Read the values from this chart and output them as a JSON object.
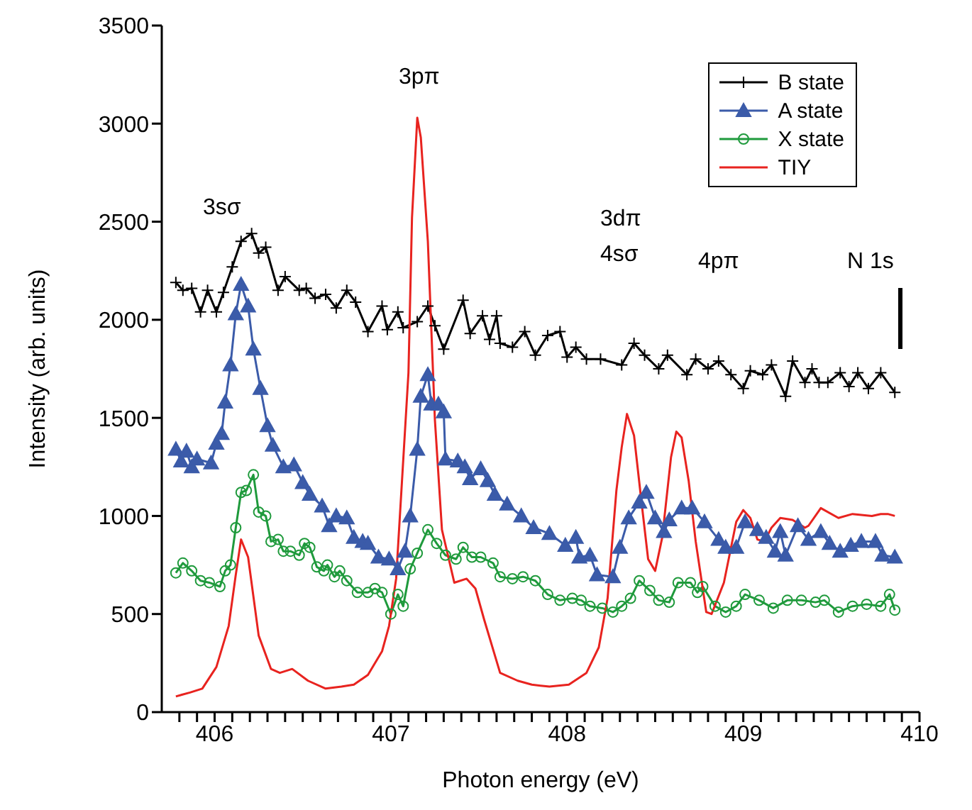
{
  "chart_data": {
    "type": "line",
    "xlabel": "Photon energy (eV)",
    "ylabel": "Intensity (arb. units)",
    "xlim": [
      405.7,
      410
    ],
    "xticks": [
      {
        "value": 405.8,
        "label": null
      },
      {
        "value": 405.9,
        "label": null
      },
      406,
      {
        "value": 406.1,
        "label": null
      },
      {
        "value": 406.2,
        "label": null
      },
      {
        "value": 406.3,
        "label": null
      },
      {
        "value": 406.4,
        "label": null
      },
      {
        "value": 406.5,
        "label": null
      },
      {
        "value": 406.6,
        "label": null
      },
      {
        "value": 406.7,
        "label": null
      },
      {
        "value": 406.8,
        "label": null
      },
      {
        "value": 406.9,
        "label": null
      },
      407,
      {
        "value": 407.1,
        "label": null
      },
      {
        "value": 407.2,
        "label": null
      },
      {
        "value": 407.3,
        "label": null
      },
      {
        "value": 407.4,
        "label": null
      },
      {
        "value": 407.5,
        "label": null
      },
      {
        "value": 407.6,
        "label": null
      },
      {
        "value": 407.7,
        "label": null
      },
      {
        "value": 407.8,
        "label": null
      },
      {
        "value": 407.9,
        "label": null
      },
      408,
      {
        "value": 408.1,
        "label": null
      },
      {
        "value": 408.2,
        "label": null
      },
      {
        "value": 408.3,
        "label": null
      },
      {
        "value": 408.4,
        "label": null
      },
      {
        "value": 408.5,
        "label": null
      },
      {
        "value": 408.6,
        "label": null
      },
      {
        "value": 408.7,
        "label": null
      },
      {
        "value": 408.8,
        "label": null
      },
      {
        "value": 408.9,
        "label": null
      },
      409,
      {
        "value": 409.1,
        "label": null
      },
      {
        "value": 409.2,
        "label": null
      },
      {
        "value": 409.3,
        "label": null
      },
      {
        "value": 409.4,
        "label": null
      },
      {
        "value": 409.5,
        "label": null
      },
      {
        "value": 409.6,
        "label": null
      },
      {
        "value": 409.7,
        "label": null
      },
      {
        "value": 409.8,
        "label": null
      },
      {
        "value": 409.9,
        "label": null
      },
      410
    ],
    "ylim": [
      0,
      3500
    ],
    "yticks": [
      0,
      500,
      1000,
      1500,
      2000,
      2500,
      3000,
      3500
    ],
    "grid": false,
    "legend": "top right",
    "line_style": "solid",
    "annotations": [
      "3sσ",
      "3pπ",
      "3dπ",
      "4sσ",
      "4pπ",
      "N 1s"
    ],
    "series": [
      {
        "name": "B state",
        "color": "#000000",
        "marker": "cross",
        "x": [
          405.78,
          405.82,
          405.87,
          405.92,
          405.96,
          406.01,
          406.05,
          406.1,
          406.15,
          406.21,
          406.25,
          406.29,
          406.36,
          406.4,
          406.48,
          406.52,
          406.57,
          406.63,
          406.69,
          406.75,
          406.8,
          406.87,
          406.95,
          406.98,
          407.04,
          407.07,
          407.15,
          407.21,
          407.25,
          407.3,
          407.41,
          407.45,
          407.52,
          407.56,
          407.6,
          407.62,
          407.69,
          407.76,
          407.82,
          407.89,
          407.96,
          408.0,
          408.05,
          408.11,
          408.19,
          408.31,
          408.38,
          408.44,
          408.52,
          408.57,
          408.68,
          408.73,
          408.8,
          408.86,
          408.93,
          409.0,
          409.04,
          409.11,
          409.16,
          409.24,
          409.28,
          409.35,
          409.39,
          409.43,
          409.48,
          409.55,
          409.6,
          409.65,
          409.71,
          409.78,
          409.86
        ],
        "values": [
          2190,
          2150,
          2160,
          2040,
          2150,
          2040,
          2140,
          2270,
          2400,
          2440,
          2340,
          2370,
          2150,
          2220,
          2150,
          2160,
          2110,
          2130,
          2060,
          2150,
          2090,
          1940,
          2070,
          1950,
          2040,
          1960,
          1990,
          2070,
          1970,
          1850,
          2100,
          1930,
          2020,
          1900,
          2020,
          1880,
          1860,
          1940,
          1820,
          1920,
          1940,
          1810,
          1860,
          1800,
          1800,
          1770,
          1880,
          1820,
          1750,
          1820,
          1720,
          1800,
          1750,
          1790,
          1720,
          1650,
          1740,
          1720,
          1770,
          1610,
          1790,
          1680,
          1750,
          1680,
          1680,
          1730,
          1660,
          1730,
          1650,
          1730,
          1630
        ]
      },
      {
        "name": "A state",
        "color": "#3b5ba9",
        "marker": "triangle",
        "x": [
          405.78,
          405.81,
          405.84,
          405.87,
          405.9,
          405.98,
          406.01,
          406.04,
          406.06,
          406.09,
          406.12,
          406.15,
          406.19,
          406.22,
          406.26,
          406.3,
          406.33,
          406.39,
          406.45,
          406.5,
          406.54,
          406.61,
          406.65,
          406.69,
          406.75,
          406.79,
          406.84,
          406.87,
          406.93,
          406.99,
          407.04,
          407.08,
          407.11,
          407.15,
          407.17,
          407.21,
          407.23,
          407.27,
          407.3,
          407.31,
          407.38,
          407.42,
          407.45,
          407.51,
          407.55,
          407.59,
          407.66,
          407.74,
          407.81,
          407.9,
          407.99,
          408.05,
          408.07,
          408.13,
          408.17,
          408.26,
          408.3,
          408.35,
          408.41,
          408.45,
          408.5,
          408.55,
          408.58,
          408.65,
          408.71,
          408.78,
          408.86,
          408.9,
          408.96,
          409.01,
          409.08,
          409.13,
          409.18,
          409.21,
          409.24,
          409.31,
          409.37,
          409.44,
          409.49,
          409.55,
          409.61,
          409.67,
          409.75,
          409.79,
          409.86
        ],
        "values": [
          1340,
          1280,
          1330,
          1250,
          1290,
          1270,
          1370,
          1420,
          1580,
          1770,
          2030,
          2180,
          2070,
          1850,
          1650,
          1460,
          1360,
          1250,
          1260,
          1170,
          1110,
          1050,
          950,
          1000,
          990,
          890,
          870,
          860,
          790,
          780,
          730,
          820,
          1000,
          1340,
          1610,
          1720,
          1570,
          1570,
          1530,
          1290,
          1280,
          1250,
          1190,
          1240,
          1180,
          1110,
          1060,
          1000,
          940,
          910,
          850,
          890,
          790,
          800,
          700,
          690,
          840,
          990,
          1070,
          1120,
          990,
          920,
          980,
          1040,
          1040,
          970,
          880,
          840,
          840,
          970,
          930,
          890,
          820,
          920,
          800,
          950,
          880,
          920,
          860,
          820,
          850,
          870,
          870,
          800,
          790
        ]
      },
      {
        "name": "X state",
        "color": "#1f9a3c",
        "marker": "circle",
        "x": [
          405.78,
          405.82,
          405.87,
          405.92,
          405.97,
          406.03,
          406.06,
          406.09,
          406.12,
          406.15,
          406.18,
          406.22,
          406.25,
          406.29,
          406.32,
          406.36,
          406.39,
          406.43,
          406.48,
          406.51,
          406.54,
          406.58,
          406.62,
          406.64,
          406.68,
          406.71,
          406.75,
          406.81,
          406.87,
          406.91,
          406.95,
          407.0,
          407.04,
          407.07,
          407.11,
          407.15,
          407.21,
          407.26,
          407.31,
          407.37,
          407.41,
          407.46,
          407.51,
          407.58,
          407.62,
          407.69,
          407.75,
          407.82,
          407.89,
          407.96,
          408.03,
          408.08,
          408.13,
          408.2,
          408.26,
          408.31,
          408.36,
          408.41,
          408.47,
          408.52,
          408.58,
          408.63,
          408.7,
          408.74,
          408.77,
          408.84,
          408.9,
          408.96,
          409.01,
          409.09,
          409.17,
          409.25,
          409.33,
          409.41,
          409.46,
          409.54,
          409.62,
          409.7,
          409.78,
          409.83,
          409.86
        ],
        "values": [
          710,
          760,
          720,
          670,
          660,
          640,
          720,
          750,
          940,
          1120,
          1130,
          1210,
          1020,
          1000,
          870,
          880,
          820,
          820,
          800,
          860,
          840,
          740,
          720,
          750,
          690,
          720,
          670,
          610,
          610,
          630,
          610,
          500,
          600,
          540,
          730,
          810,
          930,
          860,
          800,
          780,
          840,
          790,
          790,
          760,
          690,
          680,
          690,
          670,
          600,
          570,
          580,
          570,
          540,
          530,
          510,
          540,
          580,
          670,
          620,
          570,
          560,
          660,
          660,
          610,
          640,
          540,
          510,
          540,
          600,
          570,
          530,
          570,
          570,
          560,
          570,
          510,
          540,
          550,
          540,
          600,
          520
        ]
      },
      {
        "name": "TIY",
        "color": "#e8231f",
        "marker": "none",
        "x": [
          405.78,
          405.86,
          405.93,
          406.01,
          406.08,
          406.12,
          406.15,
          406.19,
          406.25,
          406.32,
          406.37,
          406.44,
          406.53,
          406.63,
          406.72,
          406.79,
          406.87,
          406.95,
          406.99,
          407.03,
          407.06,
          407.1,
          407.12,
          407.15,
          407.17,
          407.21,
          407.25,
          407.29,
          407.36,
          407.43,
          407.48,
          407.53,
          407.62,
          407.72,
          407.8,
          407.9,
          408.01,
          408.11,
          408.18,
          408.23,
          408.28,
          408.31,
          408.34,
          408.38,
          408.42,
          408.46,
          408.5,
          408.54,
          408.59,
          408.62,
          408.65,
          408.69,
          408.73,
          408.79,
          408.82,
          408.89,
          408.96,
          409.0,
          409.04,
          409.08,
          409.12,
          409.16,
          409.21,
          409.28,
          409.35,
          409.37,
          409.44,
          409.54,
          409.62,
          409.73,
          409.78,
          409.82,
          409.86
        ],
        "values": [
          80,
          100,
          120,
          230,
          440,
          700,
          880,
          790,
          390,
          220,
          200,
          220,
          160,
          120,
          130,
          140,
          190,
          310,
          440,
          680,
          1130,
          1730,
          2520,
          3030,
          2930,
          2400,
          1490,
          930,
          660,
          680,
          630,
          470,
          200,
          160,
          140,
          130,
          140,
          200,
          330,
          580,
          1130,
          1350,
          1520,
          1410,
          1090,
          780,
          720,
          890,
          1300,
          1430,
          1400,
          1180,
          870,
          510,
          500,
          660,
          970,
          1030,
          990,
          880,
          870,
          940,
          990,
          980,
          940,
          950,
          1040,
          990,
          1010,
          1000,
          1010,
          1010,
          1000
        ]
      }
    ]
  }
}
